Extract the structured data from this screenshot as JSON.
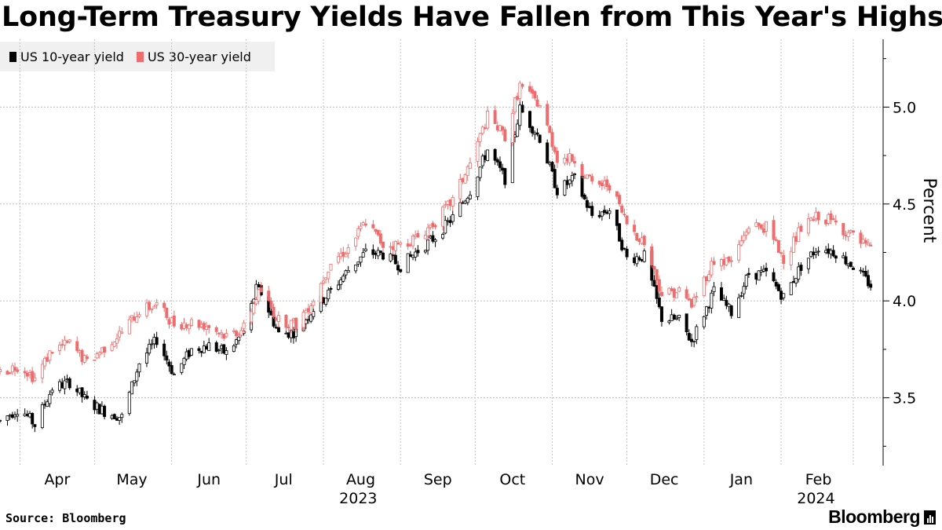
{
  "title": "Long-Term Treasury Yields Have Fallen from This Year's Highs",
  "legend": [
    {
      "label": "US 10-year yield",
      "color": "#000000"
    },
    {
      "label": "US 30-year yield",
      "color": "#f06c6c"
    }
  ],
  "source": "Source: Bloomberg",
  "brand": "Bloomberg",
  "chart_data": {
    "type": "candlestick",
    "ylabel": "Percent",
    "ylim": [
      3.15,
      5.35
    ],
    "yticks": [
      3.5,
      4.0,
      4.5,
      5.0
    ],
    "xlim": [
      "2023-03-24",
      "2024-03-13"
    ],
    "month_labels": [
      {
        "label": "Apr",
        "date": "2023-04-01"
      },
      {
        "label": "May",
        "date": "2023-05-01"
      },
      {
        "label": "Jun",
        "date": "2023-06-01"
      },
      {
        "label": "Jul",
        "date": "2023-07-01"
      },
      {
        "label": "Aug",
        "date": "2023-08-01"
      },
      {
        "label": "Sep",
        "date": "2023-09-01"
      },
      {
        "label": "Oct",
        "date": "2023-10-01"
      },
      {
        "label": "Nov",
        "date": "2023-11-01"
      },
      {
        "label": "Dec",
        "date": "2023-12-01"
      },
      {
        "label": "Jan",
        "date": "2024-01-01"
      },
      {
        "label": "Feb",
        "date": "2024-02-01"
      }
    ],
    "gridlines_x": [
      "2023-04-01",
      "2023-05-01",
      "2023-06-01",
      "2023-07-01",
      "2023-08-01",
      "2023-09-01",
      "2023-10-01",
      "2023-11-01",
      "2023-12-01",
      "2024-01-01",
      "2024-02-01",
      "2024-03-01"
    ],
    "year_labels": [
      {
        "label": "2023",
        "date": "2023-08-01"
      },
      {
        "label": "2024",
        "date": "2024-02-01"
      }
    ],
    "grid": true,
    "series": [
      {
        "name": "US 10-year yield",
        "color": "#000000",
        "points": [
          [
            "2023-03-24",
            3.38
          ],
          [
            "2023-04-01",
            3.45
          ],
          [
            "2023-04-07",
            3.36
          ],
          [
            "2023-04-14",
            3.55
          ],
          [
            "2023-04-21",
            3.58
          ],
          [
            "2023-04-28",
            3.48
          ],
          [
            "2023-05-05",
            3.43
          ],
          [
            "2023-05-12",
            3.4
          ],
          [
            "2023-05-19",
            3.68
          ],
          [
            "2023-05-26",
            3.8
          ],
          [
            "2023-06-02",
            3.62
          ],
          [
            "2023-06-09",
            3.75
          ],
          [
            "2023-06-16",
            3.77
          ],
          [
            "2023-06-23",
            3.73
          ],
          [
            "2023-06-30",
            3.84
          ],
          [
            "2023-07-05",
            4.06
          ],
          [
            "2023-07-07",
            4.04
          ],
          [
            "2023-07-14",
            3.83
          ],
          [
            "2023-07-21",
            3.84
          ],
          [
            "2023-07-28",
            3.96
          ],
          [
            "2023-08-04",
            4.05
          ],
          [
            "2023-08-11",
            4.16
          ],
          [
            "2023-08-18",
            4.25
          ],
          [
            "2023-08-25",
            4.24
          ],
          [
            "2023-09-01",
            4.18
          ],
          [
            "2023-09-08",
            4.26
          ],
          [
            "2023-09-15",
            4.33
          ],
          [
            "2023-09-22",
            4.43
          ],
          [
            "2023-09-29",
            4.57
          ],
          [
            "2023-10-06",
            4.78
          ],
          [
            "2023-10-13",
            4.63
          ],
          [
            "2023-10-19",
            4.99
          ],
          [
            "2023-10-27",
            4.84
          ],
          [
            "2023-11-03",
            4.57
          ],
          [
            "2023-11-10",
            4.63
          ],
          [
            "2023-11-17",
            4.44
          ],
          [
            "2023-11-24",
            4.47
          ],
          [
            "2023-12-01",
            4.22
          ],
          [
            "2023-12-08",
            4.23
          ],
          [
            "2023-12-15",
            3.91
          ],
          [
            "2023-12-22",
            3.9
          ],
          [
            "2023-12-27",
            3.79
          ],
          [
            "2024-01-05",
            4.05
          ],
          [
            "2024-01-12",
            3.94
          ],
          [
            "2024-01-19",
            4.14
          ],
          [
            "2024-01-26",
            4.14
          ],
          [
            "2024-02-02",
            4.02
          ],
          [
            "2024-02-09",
            4.18
          ],
          [
            "2024-02-16",
            4.28
          ],
          [
            "2024-02-23",
            4.25
          ],
          [
            "2024-03-01",
            4.18
          ],
          [
            "2024-03-08",
            4.08
          ]
        ]
      },
      {
        "name": "US 30-year yield",
        "color": "#f06c6c",
        "points": [
          [
            "2023-03-24",
            3.63
          ],
          [
            "2023-04-01",
            3.67
          ],
          [
            "2023-04-07",
            3.6
          ],
          [
            "2023-04-14",
            3.75
          ],
          [
            "2023-04-21",
            3.78
          ],
          [
            "2023-04-28",
            3.68
          ],
          [
            "2023-05-05",
            3.76
          ],
          [
            "2023-05-12",
            3.84
          ],
          [
            "2023-05-19",
            3.95
          ],
          [
            "2023-05-26",
            3.98
          ],
          [
            "2023-06-02",
            3.88
          ],
          [
            "2023-06-09",
            3.89
          ],
          [
            "2023-06-16",
            3.87
          ],
          [
            "2023-06-23",
            3.82
          ],
          [
            "2023-06-30",
            3.86
          ],
          [
            "2023-07-05",
            4.02
          ],
          [
            "2023-07-07",
            4.05
          ],
          [
            "2023-07-14",
            3.9
          ],
          [
            "2023-07-21",
            3.88
          ],
          [
            "2023-07-28",
            4.01
          ],
          [
            "2023-08-04",
            4.2
          ],
          [
            "2023-08-11",
            4.27
          ],
          [
            "2023-08-18",
            4.41
          ],
          [
            "2023-08-25",
            4.29
          ],
          [
            "2023-09-01",
            4.29
          ],
          [
            "2023-09-08",
            4.33
          ],
          [
            "2023-09-15",
            4.41
          ],
          [
            "2023-09-22",
            4.52
          ],
          [
            "2023-09-29",
            4.71
          ],
          [
            "2023-10-06",
            4.95
          ],
          [
            "2023-10-13",
            4.85
          ],
          [
            "2023-10-19",
            5.11
          ],
          [
            "2023-10-27",
            5.01
          ],
          [
            "2023-11-03",
            4.74
          ],
          [
            "2023-11-10",
            4.73
          ],
          [
            "2023-11-17",
            4.6
          ],
          [
            "2023-11-24",
            4.6
          ],
          [
            "2023-12-01",
            4.4
          ],
          [
            "2023-12-08",
            4.3
          ],
          [
            "2023-12-15",
            4.04
          ],
          [
            "2023-12-22",
            4.05
          ],
          [
            "2023-12-27",
            3.98
          ],
          [
            "2024-01-05",
            4.21
          ],
          [
            "2024-01-12",
            4.2
          ],
          [
            "2024-01-19",
            4.39
          ],
          [
            "2024-01-26",
            4.38
          ],
          [
            "2024-02-02",
            4.22
          ],
          [
            "2024-02-09",
            4.37
          ],
          [
            "2024-02-16",
            4.44
          ],
          [
            "2024-02-23",
            4.4
          ],
          [
            "2024-03-01",
            4.33
          ],
          [
            "2024-03-08",
            4.26
          ]
        ]
      }
    ]
  }
}
